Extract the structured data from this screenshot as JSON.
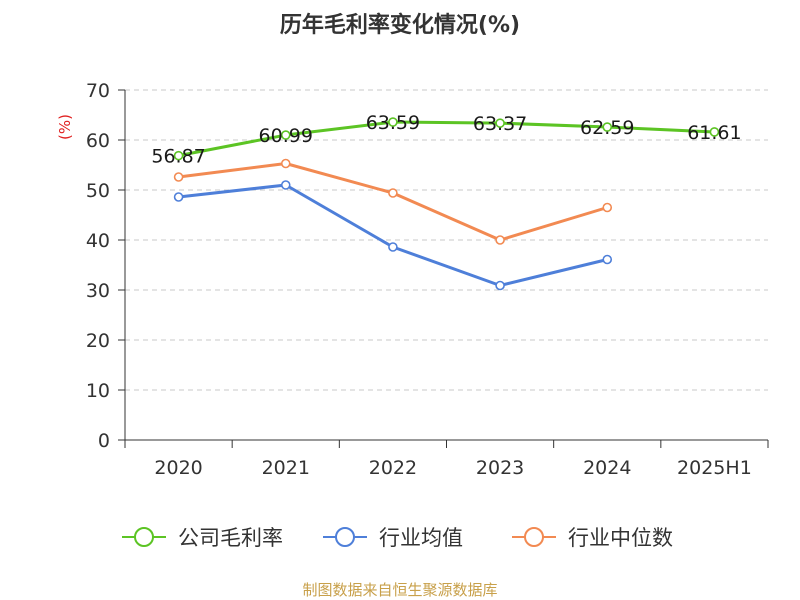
{
  "chart_data": {
    "type": "line",
    "title": "历年毛利率变化情况(%)",
    "ylabel": "(%)",
    "categories": [
      "2020",
      "2021",
      "2022",
      "2023",
      "2024",
      "2025H1"
    ],
    "ylim": [
      0,
      70
    ],
    "yticks": [
      "0",
      "10",
      "20",
      "30",
      "40",
      "50",
      "60",
      "70"
    ],
    "grid": true,
    "legend_position": "bottom",
    "series": [
      {
        "name": "公司毛利率",
        "color": "#5cc424",
        "values": [
          56.87,
          60.99,
          63.59,
          63.37,
          62.59,
          61.61
        ],
        "labels": [
          "56.87",
          "60.99",
          "63.59",
          "63.37",
          "62.59",
          "61.61"
        ]
      },
      {
        "name": "行业均值",
        "color": "#4e7fd9",
        "values": [
          48.6,
          51.0,
          38.6,
          30.9,
          36.1,
          null
        ]
      },
      {
        "name": "行业中位数",
        "color": "#f28a52",
        "values": [
          52.6,
          55.3,
          49.4,
          40.0,
          46.5,
          null
        ]
      }
    ]
  },
  "source": "制图数据来自恒生聚源数据库"
}
